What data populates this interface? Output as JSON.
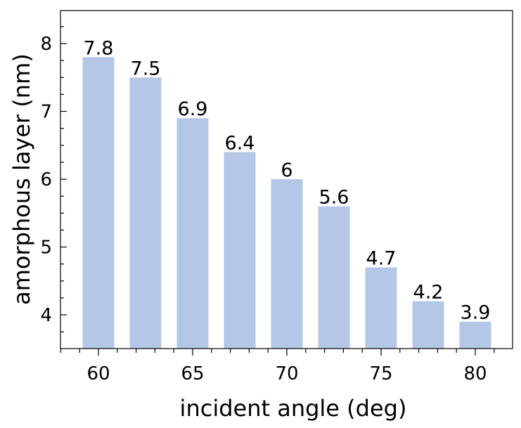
{
  "chart_data": {
    "type": "bar",
    "xlabel": "incident angle (deg)",
    "ylabel": "amorphous layer (nm)",
    "x": [
      60,
      62.5,
      65,
      67.5,
      70,
      72.5,
      75,
      77.5,
      80
    ],
    "values": [
      7.8,
      7.5,
      6.9,
      6.4,
      6,
      5.6,
      4.7,
      4.2,
      3.9
    ],
    "data_labels": [
      "7.8",
      "7.5",
      "6.9",
      "6.4",
      "6",
      "5.6",
      "4.7",
      "4.2",
      "3.9"
    ],
    "xlim": [
      58,
      82
    ],
    "ylim": [
      3.5,
      8.5
    ],
    "xticks": [
      60,
      65,
      70,
      75,
      80
    ],
    "yticks": [
      4,
      5,
      6,
      7,
      8
    ],
    "bar_color": "#b4c7e7",
    "grid": false
  }
}
